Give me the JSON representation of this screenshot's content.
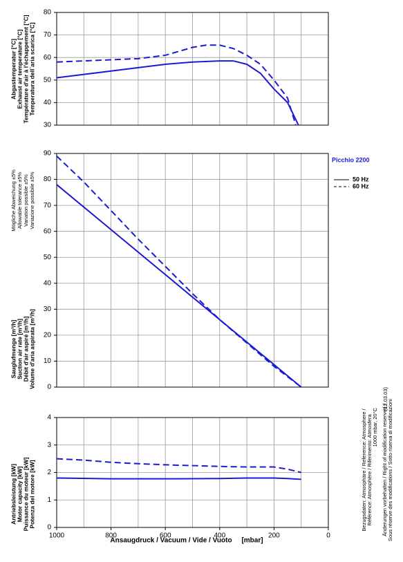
{
  "chart_data": [
    {
      "type": "line",
      "ylabel": [
        "Abgastemperatur [°C]",
        "Exhaust air temperature [°C]",
        "Température d'air à l'échappement [°C]",
        "Temperatura dell´aria scarica [°C]"
      ],
      "xlim": [
        1000,
        0
      ],
      "ylim": [
        30,
        80
      ],
      "yticks": [
        30,
        40,
        50,
        60,
        70,
        80
      ],
      "xgrid": [
        1000,
        900,
        800,
        700,
        600,
        500,
        400,
        300,
        200,
        100,
        0
      ],
      "series": [
        {
          "color": "#1a1ad6",
          "linestyle": "solid",
          "x": [
            1000,
            900,
            800,
            700,
            600,
            500,
            400,
            350,
            300,
            250,
            200,
            150,
            110
          ],
          "values": [
            51,
            52.5,
            54,
            55.5,
            57,
            58,
            58.5,
            58.5,
            57,
            53,
            46,
            40,
            30
          ]
        },
        {
          "color": "#1a1ad6",
          "linestyle": "dashed",
          "x": [
            1000,
            900,
            800,
            700,
            600,
            500,
            450,
            400,
            350,
            300,
            250,
            200,
            150,
            120
          ],
          "values": [
            58,
            58.5,
            59,
            59.5,
            61,
            64.5,
            65.5,
            65.5,
            64,
            61,
            57,
            50,
            42,
            30
          ]
        }
      ]
    },
    {
      "type": "line",
      "title": "Picchio 2200",
      "note": [
        "Mögliche Abweichung ±5%",
        "Allowable tolerance ±5%",
        "Variation possible ±5%",
        "Variazione possibile ±5%"
      ],
      "ylabel": [
        "Sauglufmenge [m³/h]",
        "Suction air rate [m³/h]",
        "Débit d'air aspiré [m³/h]",
        "Volume d'aria aspirata [m³/h]"
      ],
      "xlim": [
        1000,
        0
      ],
      "ylim": [
        0,
        90
      ],
      "yticks": [
        0,
        10,
        20,
        30,
        40,
        50,
        60,
        70,
        80,
        90
      ],
      "xgrid": [
        1000,
        900,
        800,
        700,
        600,
        500,
        400,
        300,
        200,
        100,
        0
      ],
      "legend": "right",
      "series": [
        {
          "name": "50 Hz",
          "color": "#1a1ad6",
          "linestyle": "solid",
          "x": [
            1000,
            100
          ],
          "values": [
            78,
            0
          ]
        },
        {
          "name": "60 Hz",
          "color": "#1a1ad6",
          "linestyle": "dashed",
          "x": [
            1000,
            900,
            800,
            700,
            600,
            500,
            400,
            300,
            200,
            100
          ],
          "values": [
            89,
            79,
            68,
            57,
            46.5,
            36,
            26,
            17,
            8,
            0
          ]
        }
      ]
    },
    {
      "type": "line",
      "ylabel": [
        "Antriebsleistung [kW]",
        "Motor capacity [kW]",
        "Puissance du moteur [kW]",
        "Potenza del motore [kW]"
      ],
      "xlabel": "Ansaugdruck / Vacuum / Vide / Vuoto     [mbar]",
      "xlim": [
        1000,
        0
      ],
      "ylim": [
        0,
        4
      ],
      "yticks": [
        0,
        1,
        2,
        3,
        4
      ],
      "xticks": [
        1000,
        800,
        600,
        400,
        200,
        0
      ],
      "xgrid": [
        1000,
        900,
        800,
        700,
        600,
        500,
        400,
        300,
        200,
        100,
        0
      ],
      "series": [
        {
          "color": "#1a1ad6",
          "linestyle": "solid",
          "x": [
            1000,
            800,
            600,
            400,
            300,
            200,
            150,
            100
          ],
          "values": [
            1.8,
            1.77,
            1.77,
            1.78,
            1.8,
            1.8,
            1.78,
            1.75
          ]
        },
        {
          "color": "#1a1ad6",
          "linestyle": "dashed",
          "x": [
            1000,
            900,
            800,
            700,
            600,
            500,
            400,
            300,
            200,
            150,
            100
          ],
          "values": [
            2.5,
            2.45,
            2.37,
            2.32,
            2.28,
            2.25,
            2.22,
            2.2,
            2.2,
            2.12,
            2.0
          ]
        }
      ]
    }
  ],
  "notes": [
    "Bezugsdaten: Atmosphäre / Reference: Atmosphere /",
    "Référence: Atmosphère / Riferimento: Atmosfera",
    "1000 mbar, 20°C",
    "Änderungen vorbehalten / Right of modification reserved /",
    "Sous réserve des modifications / Sotto riserva di modificazioni",
    "(12.03.03)"
  ]
}
